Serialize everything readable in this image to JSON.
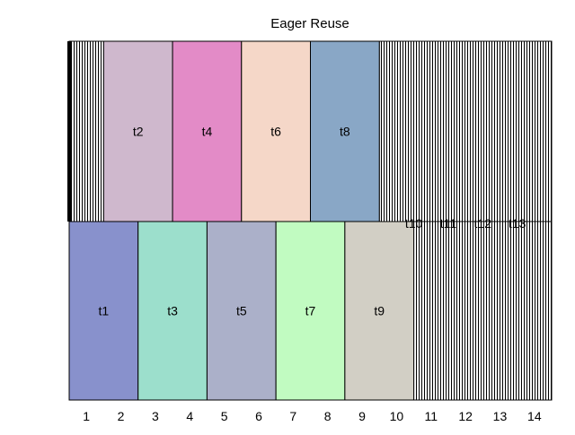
{
  "chart_data": {
    "type": "bar",
    "title": "Eager Reuse",
    "xlabel": "",
    "ylabel": "",
    "xlim": [
      0.5,
      14.5
    ],
    "x_ticks": [
      1,
      2,
      3,
      4,
      5,
      6,
      7,
      8,
      9,
      10,
      11,
      12,
      13,
      14
    ],
    "lanes": [
      "top",
      "bottom"
    ],
    "series": [
      {
        "name": "t1",
        "lane": "bottom",
        "start": 0.5,
        "end": 2.5,
        "color": "#8891cc"
      },
      {
        "name": "t2",
        "lane": "top",
        "start": 1.5,
        "end": 3.5,
        "color": "#cfb8cd"
      },
      {
        "name": "t3",
        "lane": "bottom",
        "start": 2.5,
        "end": 4.5,
        "color": "#9cdfcc"
      },
      {
        "name": "t4",
        "lane": "top",
        "start": 3.5,
        "end": 5.5,
        "color": "#e38bc7"
      },
      {
        "name": "t5",
        "lane": "bottom",
        "start": 4.5,
        "end": 6.5,
        "color": "#abb0c9"
      },
      {
        "name": "t6",
        "lane": "top",
        "start": 5.5,
        "end": 7.5,
        "color": "#f5d7c8"
      },
      {
        "name": "t7",
        "lane": "bottom",
        "start": 6.5,
        "end": 8.5,
        "color": "#c1fbc1"
      },
      {
        "name": "t8",
        "lane": "top",
        "start": 7.5,
        "end": 9.5,
        "color": "#89a7c6"
      },
      {
        "name": "t9",
        "lane": "bottom",
        "start": 8.5,
        "end": 10.5,
        "color": "#d2cfc5"
      },
      {
        "name": "t10",
        "lane": "boundary",
        "start": 9.5,
        "end": 11.5,
        "color": "#ffffff"
      },
      {
        "name": "t11",
        "lane": "boundary",
        "start": 10.5,
        "end": 12.5,
        "color": "#ffffff"
      },
      {
        "name": "t12",
        "lane": "boundary",
        "start": 11.5,
        "end": 13.5,
        "color": "#ffffff"
      },
      {
        "name": "t13",
        "lane": "boundary",
        "start": 12.5,
        "end": 14.5,
        "color": "#ffffff"
      }
    ],
    "hatched_regions": [
      {
        "lane": "top",
        "start": 0.5,
        "end": 1.5
      },
      {
        "lane": "top",
        "start": 9.5,
        "end": 14.5
      },
      {
        "lane": "bottom",
        "start": 10.5,
        "end": 14.5
      }
    ],
    "grid": false,
    "legend": "none"
  }
}
